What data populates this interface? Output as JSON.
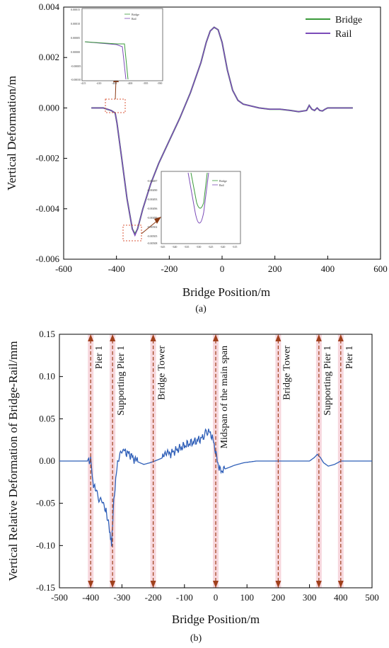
{
  "chart_data": [
    {
      "type": "line",
      "panel_label": "(a)",
      "xlabel": "Bridge Position/m",
      "ylabel": "Vertical Deformation/m",
      "xlim": [
        -600,
        600
      ],
      "ylim": [
        -0.006,
        0.004
      ],
      "xticks": [
        -600,
        -400,
        -200,
        0,
        200,
        400,
        600
      ],
      "yticks": [
        0.004,
        0.002,
        0.0,
        -0.002,
        -0.004,
        -0.006
      ],
      "xtick_labels": [
        "-600",
        "-400",
        "-200",
        "0",
        "200",
        "400",
        "600"
      ],
      "ytick_labels": [
        "0.004",
        "0.002",
        "0.000",
        "-0.002",
        "-0.004",
        "-0.006"
      ],
      "legend": "top-right",
      "grid": false,
      "series": [
        {
          "name": "Bridge",
          "color": "#3a9a3a",
          "x": [
            -495,
            -450,
            -420,
            -405,
            -398,
            -380,
            -360,
            -340,
            -330,
            -320,
            -300,
            -270,
            -240,
            -200,
            -160,
            -120,
            -80,
            -60,
            -45,
            -30,
            -15,
            0,
            20,
            40,
            60,
            80,
            100,
            140,
            180,
            220,
            260,
            290,
            320,
            330,
            340,
            350,
            360,
            370,
            380,
            390,
            400,
            440,
            495
          ],
          "y": [
            0,
            0,
            -0.0001,
            -0.0002,
            -0.0006,
            -0.002,
            -0.0036,
            -0.0048,
            -0.005,
            -0.0048,
            -0.004,
            -0.003,
            -0.0022,
            -0.0013,
            -0.0004,
            0.0006,
            0.0018,
            0.0026,
            0.00305,
            0.0032,
            0.0031,
            0.0026,
            0.0015,
            0.0007,
            0.0003,
            0.00015,
            0.0001,
            0.0,
            -5e-05,
            -5e-05,
            -0.0001,
            -0.00015,
            -0.0001,
            0.0001,
            -5e-05,
            -0.0001,
            0.0,
            -0.0001,
            -0.00012,
            -5e-05,
            0,
            0,
            0
          ]
        },
        {
          "name": "Rail",
          "color": "#7b4bb8",
          "x": [
            -495,
            -450,
            -420,
            -405,
            -398,
            -380,
            -360,
            -340,
            -330,
            -320,
            -300,
            -270,
            -240,
            -200,
            -160,
            -120,
            -80,
            -60,
            -45,
            -30,
            -15,
            0,
            20,
            40,
            60,
            80,
            100,
            140,
            180,
            220,
            260,
            290,
            320,
            330,
            340,
            350,
            360,
            370,
            380,
            390,
            400,
            440,
            495
          ],
          "y": [
            0,
            0,
            -0.0001,
            -0.0002,
            -0.0006,
            -0.002,
            -0.0036,
            -0.0048,
            -0.00505,
            -0.0048,
            -0.004,
            -0.003,
            -0.0022,
            -0.0013,
            -0.0004,
            0.0006,
            0.0018,
            0.0026,
            0.00305,
            0.0032,
            0.0031,
            0.0026,
            0.0015,
            0.0007,
            0.0003,
            0.00015,
            0.0001,
            0.0,
            -5e-05,
            -5e-05,
            -0.0001,
            -0.00015,
            -0.0001,
            0.0001,
            -5e-05,
            -0.0001,
            0.0,
            -0.0001,
            -0.00012,
            -5e-05,
            0,
            0,
            0
          ]
        }
      ],
      "insets": [
        {
          "legend": [
            "Bridge",
            "Rail"
          ],
          "xtick_labels": [
            "-415",
            "-410",
            "-405",
            "-400",
            "-395",
            "-390"
          ],
          "ytick_labels": [
            "0.00015",
            "0.00010",
            "0.00005",
            "0.00000",
            "-0.00005",
            "-0.00010"
          ]
        },
        {
          "legend": [
            "Bridge",
            "Rail"
          ],
          "xtick_labels": [
            "-345",
            "-340",
            "-335",
            "-330",
            "-325",
            "-320",
            "-315"
          ],
          "ytick_labels": [
            "-0.00487",
            "-0.00490",
            "-0.00493",
            "-0.00496",
            "-0.00499",
            "-0.00502",
            "-0.00505",
            "-0.00508"
          ]
        }
      ]
    },
    {
      "type": "line",
      "panel_label": "(b)",
      "xlabel": "Bridge Position/m",
      "ylabel": "Vertical Relative Deformation of Bridge-Rail/mm",
      "xlim": [
        -500,
        500
      ],
      "ylim": [
        -0.15,
        0.15
      ],
      "xticks": [
        -500,
        -400,
        -300,
        -200,
        -100,
        0,
        100,
        200,
        300,
        400,
        500
      ],
      "yticks": [
        0.15,
        0.1,
        0.05,
        0.0,
        -0.05,
        -0.1,
        -0.15
      ],
      "xtick_labels": [
        "-500",
        "-400",
        "-300",
        "-200",
        "-100",
        "0",
        "100",
        "200",
        "300",
        "400",
        "500"
      ],
      "ytick_labels": [
        "0.15",
        "0.10",
        "0.05",
        "0.00",
        "-0.05",
        "-0.10",
        "-0.15"
      ],
      "grid": false,
      "series": [
        {
          "name": "",
          "color": "#2f5fb8",
          "x": [
            -500,
            -410,
            -400,
            -395,
            -385,
            -370,
            -355,
            -345,
            -338,
            -333,
            -328,
            -320,
            -310,
            -295,
            -275,
            -255,
            -230,
            -210,
            -195,
            -175,
            -150,
            -120,
            -90,
            -60,
            -40,
            -25,
            -15,
            -5,
            5,
            15,
            25,
            40,
            60,
            90,
            130,
            180,
            220,
            260,
            300,
            315,
            325,
            335,
            345,
            360,
            380,
            400,
            430,
            500
          ],
          "y": [
            0,
            0,
            0.002,
            -0.02,
            -0.035,
            -0.045,
            -0.055,
            -0.07,
            -0.09,
            -0.1,
            -0.06,
            -0.02,
            0.005,
            0.012,
            0.008,
            0.0,
            -0.004,
            -0.002,
            0.0,
            0.003,
            0.008,
            0.014,
            0.02,
            0.024,
            0.028,
            0.035,
            0.032,
            0.02,
            0.0,
            -0.012,
            -0.01,
            -0.008,
            -0.005,
            -0.002,
            0.0,
            0.0,
            0.0,
            0.0,
            0.0,
            0.004,
            0.008,
            0.004,
            -0.002,
            -0.006,
            -0.004,
            0.0,
            0.0,
            0.0
          ]
        }
      ],
      "annotations": [
        {
          "x": -400,
          "text": "Pier 1"
        },
        {
          "x": -330,
          "text": "Supporting Pier 1"
        },
        {
          "x": -200,
          "text": "Bridge Tower"
        },
        {
          "x": 0,
          "text": "Midspan of the main span"
        },
        {
          "x": 200,
          "text": "Bridge Tower"
        },
        {
          "x": 330,
          "text": "Supporting Pier 1"
        },
        {
          "x": 400,
          "text": "Pier 1"
        }
      ]
    }
  ],
  "colors": {
    "bridge": "#3a9a3a",
    "rail": "#7b4bb8",
    "relative": "#2f5fb8",
    "arrow": "#a0401c",
    "band": "#f3c6cf"
  }
}
